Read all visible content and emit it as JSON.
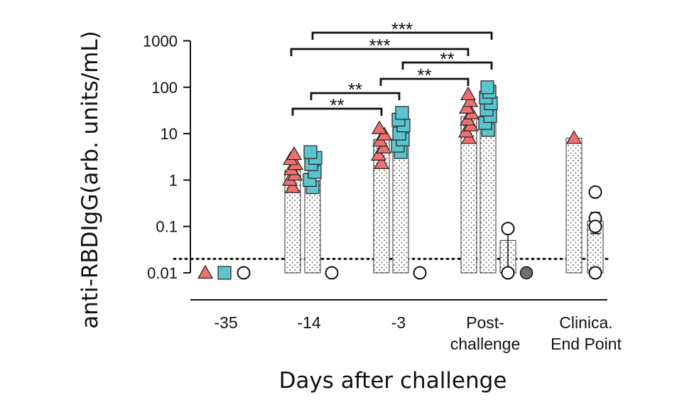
{
  "chart_data": {
    "type": "bar",
    "title": "",
    "xlabel": "Days after challenge",
    "ylabel": "anti-RBDIgG(arb. units/mL)",
    "y_scale": "log",
    "ylim": [
      0.01,
      1000
    ],
    "y_ticks": [
      {
        "value": 0.01,
        "label": "0.01"
      },
      {
        "value": 0.1,
        "label": "0.1"
      },
      {
        "value": 1,
        "label": "1"
      },
      {
        "value": 10,
        "label": "10"
      },
      {
        "value": 100,
        "label": "100"
      },
      {
        "value": 1000,
        "label": "1000"
      }
    ],
    "limit_of_detection": 0.02,
    "categories": [
      {
        "label": "-35",
        "label_lines": [
          "-35"
        ]
      },
      {
        "label": "-14",
        "label_lines": [
          "-14"
        ]
      },
      {
        "label": "-3",
        "label_lines": [
          "-3"
        ]
      },
      {
        "label": "Post-challenge",
        "label_lines": [
          "Post-",
          "challenge"
        ]
      },
      {
        "label": "Clinica. End Point",
        "label_lines": [
          "Clinica.",
          "End Point"
        ]
      }
    ],
    "series": [
      {
        "marker": "triangle",
        "color": "#f07070",
        "bars": [
          null,
          1.6,
          7.5,
          23,
          8
        ],
        "points": [
          [
            0.01
          ],
          [
            0.7,
            1.0,
            1.3,
            1.7,
            2.2,
            2.8,
            3.6
          ],
          [
            2.3,
            3.5,
            5.0,
            7.0,
            9.5,
            13
          ],
          [
            8,
            11,
            15,
            20,
            27,
            36,
            50,
            70
          ],
          [
            8
          ]
        ]
      },
      {
        "marker": "square",
        "color": "#5bc4cc",
        "bars": [
          null,
          1.4,
          9,
          40,
          null
        ],
        "points": [
          [
            0.01
          ],
          [
            0.7,
            1.0,
            1.5,
            2.2,
            3.0,
            4.0
          ],
          [
            4.0,
            5.5,
            7.5,
            10,
            15,
            20,
            28
          ],
          [
            12,
            17,
            24,
            33,
            45,
            60,
            80,
            100
          ],
          []
        ]
      },
      {
        "marker": "circle",
        "color": "#000000",
        "bars": [
          null,
          null,
          null,
          0.05,
          0.13
        ],
        "error_bars": [
          null,
          null,
          null,
          [
            0.01,
            0.09
          ],
          [
            0.07,
            0.2
          ]
        ],
        "points": [
          [
            0.01
          ],
          [
            0.01
          ],
          [
            0.01
          ],
          [
            0.09,
            0.01
          ],
          [
            0.55,
            0.15,
            0.1,
            0.01
          ]
        ],
        "extra_marker": {
          "category": "Post-challenge",
          "value": 0.01,
          "color": "#707070"
        }
      }
    ],
    "significance": [
      {
        "label": "***",
        "from": "-3 (square)",
        "to": "Post-challenge (square)"
      },
      {
        "label": "***",
        "from": "-14 (triangle)",
        "to": "Post-challenge (triangle)"
      },
      {
        "label": "**",
        "from": "-3 (square)",
        "to": "Post-challenge (triangle)"
      },
      {
        "label": "**",
        "from": "-3 (triangle)",
        "to": "Post-challenge (triangle)"
      },
      {
        "label": "**",
        "from": "-14 (square)",
        "to": "-3 (triangle)"
      },
      {
        "label": "**",
        "from": "-14 (triangle)",
        "to": "-3 (triangle)"
      }
    ],
    "grid": false,
    "legend": "none"
  }
}
